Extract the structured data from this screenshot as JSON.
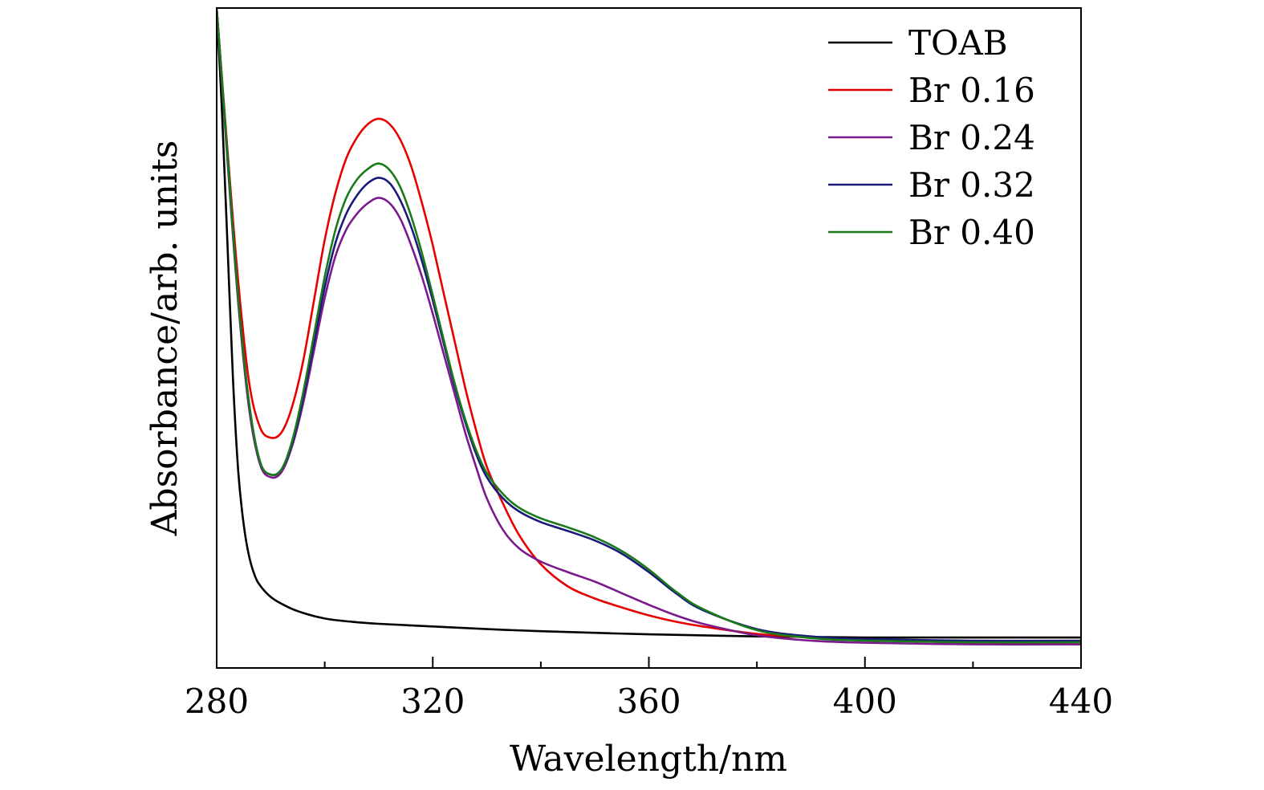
{
  "chart_data": {
    "type": "line",
    "title": "",
    "xlabel": "Wavelength/nm",
    "ylabel": "Absorbance/arb. units",
    "xlim": [
      280,
      440
    ],
    "ylim": [
      0,
      1.2
    ],
    "xticks": [
      280,
      320,
      360,
      400,
      440
    ],
    "xtick_labels": [
      "280",
      "320",
      "360",
      "400",
      "440"
    ],
    "x_minor_ticks": [
      300,
      340,
      380,
      420
    ],
    "yticks_shown": false,
    "grid": false,
    "legend_position": "top-right",
    "series": [
      {
        "name": "TOAB",
        "color": "#000000",
        "x": [
          280,
          281,
          282,
          283,
          284,
          285,
          286,
          287,
          288,
          290,
          292,
          295,
          300,
          305,
          310,
          320,
          330,
          340,
          360,
          380,
          400,
          420,
          440
        ],
        "y": [
          1.2,
          1.0,
          0.75,
          0.5,
          0.32,
          0.22,
          0.16,
          0.125,
          0.105,
          0.083,
          0.07,
          0.056,
          0.042,
          0.036,
          0.032,
          0.027,
          0.022,
          0.018,
          0.012,
          0.008,
          0.006,
          0.006,
          0.006
        ]
      },
      {
        "name": "Br 0.16",
        "color": "#e60000",
        "x": [
          280,
          282,
          284,
          286,
          288,
          290,
          292,
          294,
          296,
          298,
          300,
          302,
          304,
          306,
          308,
          310,
          312,
          314,
          316,
          318,
          320,
          322,
          324,
          326,
          328,
          330,
          333,
          336,
          340,
          345,
          350,
          355,
          360,
          365,
          370,
          380,
          390,
          400,
          420,
          440
        ],
        "y": [
          1.2,
          0.93,
          0.68,
          0.49,
          0.405,
          0.385,
          0.395,
          0.445,
          0.53,
          0.645,
          0.76,
          0.85,
          0.915,
          0.955,
          0.98,
          0.99,
          0.98,
          0.95,
          0.9,
          0.83,
          0.75,
          0.66,
          0.57,
          0.48,
          0.4,
          0.33,
          0.26,
          0.2,
          0.145,
          0.103,
          0.08,
          0.063,
          0.048,
          0.036,
          0.027,
          0.013,
          0.006,
          0.002,
          -0.004,
          -0.007
        ]
      },
      {
        "name": "Br 0.24",
        "color": "#7a1a8c",
        "x": [
          280,
          282,
          284,
          286,
          288,
          290,
          292,
          294,
          296,
          298,
          300,
          302,
          304,
          306,
          308,
          310,
          312,
          314,
          316,
          318,
          320,
          322,
          324,
          326,
          328,
          330,
          333,
          336,
          340,
          345,
          350,
          355,
          360,
          365,
          370,
          380,
          390,
          400,
          420,
          440
        ],
        "y": [
          1.2,
          0.91,
          0.64,
          0.44,
          0.335,
          0.31,
          0.32,
          0.37,
          0.45,
          0.55,
          0.65,
          0.73,
          0.78,
          0.81,
          0.83,
          0.84,
          0.83,
          0.8,
          0.75,
          0.69,
          0.62,
          0.545,
          0.47,
          0.395,
          0.33,
          0.27,
          0.21,
          0.175,
          0.15,
          0.13,
          0.112,
          0.09,
          0.068,
          0.048,
          0.032,
          0.01,
          0.0,
          -0.004,
          -0.007,
          -0.007
        ]
      },
      {
        "name": "Br 0.32",
        "color": "#1a1a7a",
        "x": [
          280,
          282,
          284,
          286,
          288,
          290,
          292,
          294,
          296,
          298,
          300,
          302,
          304,
          306,
          308,
          310,
          312,
          314,
          316,
          318,
          320,
          322,
          324,
          326,
          328,
          330,
          333,
          336,
          340,
          345,
          350,
          355,
          360,
          365,
          370,
          380,
          390,
          400,
          420,
          440
        ],
        "y": [
          1.2,
          0.92,
          0.65,
          0.45,
          0.34,
          0.315,
          0.325,
          0.375,
          0.46,
          0.565,
          0.67,
          0.755,
          0.81,
          0.845,
          0.868,
          0.878,
          0.868,
          0.835,
          0.785,
          0.72,
          0.645,
          0.565,
          0.485,
          0.415,
          0.355,
          0.31,
          0.27,
          0.245,
          0.225,
          0.208,
          0.19,
          0.165,
          0.13,
          0.09,
          0.058,
          0.022,
          0.008,
          0.003,
          0.0,
          0.0
        ]
      },
      {
        "name": "Br 0.40",
        "color": "#1a7a1a",
        "x": [
          280,
          282,
          284,
          286,
          288,
          290,
          292,
          294,
          296,
          298,
          300,
          302,
          304,
          306,
          308,
          310,
          312,
          314,
          316,
          318,
          320,
          322,
          324,
          326,
          328,
          330,
          333,
          336,
          340,
          345,
          350,
          355,
          360,
          365,
          370,
          380,
          390,
          400,
          420,
          440
        ],
        "y": [
          1.2,
          0.92,
          0.65,
          0.45,
          0.34,
          0.315,
          0.325,
          0.38,
          0.47,
          0.58,
          0.69,
          0.78,
          0.84,
          0.875,
          0.895,
          0.905,
          0.893,
          0.86,
          0.805,
          0.735,
          0.655,
          0.572,
          0.49,
          0.42,
          0.362,
          0.318,
          0.278,
          0.252,
          0.232,
          0.215,
          0.196,
          0.17,
          0.135,
          0.093,
          0.06,
          0.02,
          0.005,
          0.0,
          -0.003,
          -0.003
        ]
      }
    ]
  }
}
